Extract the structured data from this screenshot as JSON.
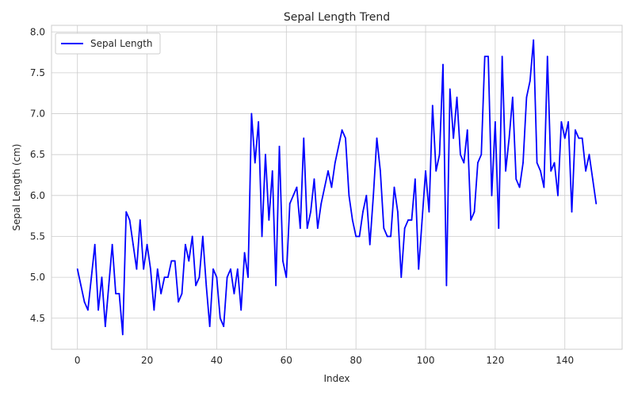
{
  "chart_data": {
    "type": "line",
    "title": "Sepal Length Trend",
    "xlabel": "Index",
    "ylabel": "Sepal Length (cm)",
    "xlim": [
      -7.45,
      156.45
    ],
    "ylim": [
      4.12,
      8.08
    ],
    "xticks": [
      0,
      20,
      40,
      60,
      80,
      100,
      120,
      140
    ],
    "yticks": [
      4.5,
      5.0,
      5.5,
      6.0,
      6.5,
      7.0,
      7.5,
      8.0
    ],
    "ytick_labels": [
      "4.5",
      "5.0",
      "5.5",
      "6.0",
      "6.5",
      "7.0",
      "7.5",
      "8.0"
    ],
    "grid": true,
    "legend_position": "top-left",
    "series": [
      {
        "name": "Sepal Length",
        "color": "#0000ff",
        "values": [
          5.1,
          4.9,
          4.7,
          4.6,
          5.0,
          5.4,
          4.6,
          5.0,
          4.4,
          4.9,
          5.4,
          4.8,
          4.8,
          4.3,
          5.8,
          5.7,
          5.4,
          5.1,
          5.7,
          5.1,
          5.4,
          5.1,
          4.6,
          5.1,
          4.8,
          5.0,
          5.0,
          5.2,
          5.2,
          4.7,
          4.8,
          5.4,
          5.2,
          5.5,
          4.9,
          5.0,
          5.5,
          4.9,
          4.4,
          5.1,
          5.0,
          4.5,
          4.4,
          5.0,
          5.1,
          4.8,
          5.1,
          4.6,
          5.3,
          5.0,
          7.0,
          6.4,
          6.9,
          5.5,
          6.5,
          5.7,
          6.3,
          4.9,
          6.6,
          5.2,
          5.0,
          5.9,
          6.0,
          6.1,
          5.6,
          6.7,
          5.6,
          5.8,
          6.2,
          5.6,
          5.9,
          6.1,
          6.3,
          6.1,
          6.4,
          6.6,
          6.8,
          6.7,
          6.0,
          5.7,
          5.5,
          5.5,
          5.8,
          6.0,
          5.4,
          6.0,
          6.7,
          6.3,
          5.6,
          5.5,
          5.5,
          6.1,
          5.8,
          5.0,
          5.6,
          5.7,
          5.7,
          6.2,
          5.1,
          5.7,
          6.3,
          5.8,
          7.1,
          6.3,
          6.5,
          7.6,
          4.9,
          7.3,
          6.7,
          7.2,
          6.5,
          6.4,
          6.8,
          5.7,
          5.8,
          6.4,
          6.5,
          7.7,
          7.7,
          6.0,
          6.9,
          5.6,
          7.7,
          6.3,
          6.7,
          7.2,
          6.2,
          6.1,
          6.4,
          7.2,
          7.4,
          7.9,
          6.4,
          6.3,
          6.1,
          7.7,
          6.3,
          6.4,
          6.0,
          6.9,
          6.7,
          6.9,
          5.8,
          6.8,
          6.7,
          6.7,
          6.3,
          6.5,
          6.2,
          5.9
        ]
      }
    ]
  }
}
